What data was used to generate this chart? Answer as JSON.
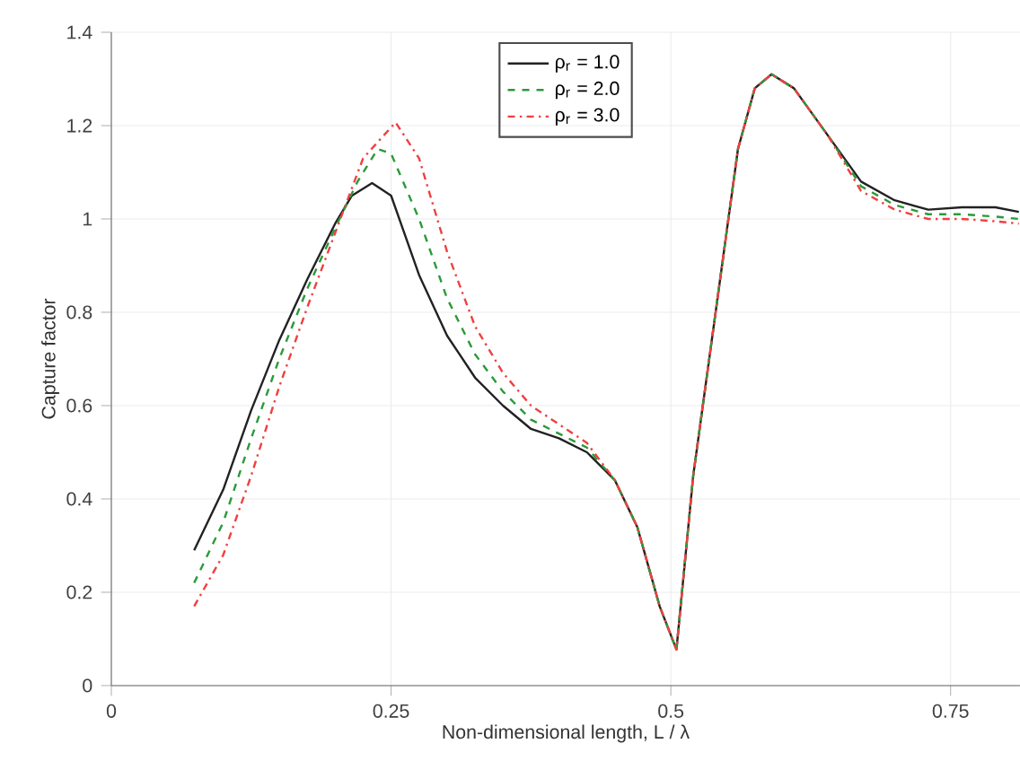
{
  "chart_data": {
    "type": "line",
    "xlabel": "Non-dimensional length, L / λ",
    "ylabel": "Capture factor",
    "xlim": [
      0,
      0.812
    ],
    "ylim": [
      0,
      1.4
    ],
    "xticks": [
      0,
      0.25,
      0.5,
      0.75
    ],
    "yticks": [
      0,
      0.2,
      0.4,
      0.6,
      0.8,
      1,
      1.2,
      1.4
    ],
    "grid": true,
    "legend": "top",
    "series": [
      {
        "name": "ρ$_{r}$ = 1.0",
        "color": "#222222",
        "line_style": "solid",
        "x": [
          0.074,
          0.1,
          0.125,
          0.15,
          0.175,
          0.2,
          0.215,
          0.233,
          0.25,
          0.275,
          0.3,
          0.325,
          0.35,
          0.375,
          0.4,
          0.425,
          0.45,
          0.47,
          0.49,
          0.505,
          0.52,
          0.54,
          0.56,
          0.575,
          0.59,
          0.61,
          0.64,
          0.67,
          0.7,
          0.73,
          0.76,
          0.79,
          0.811
        ],
        "values": [
          0.29,
          0.42,
          0.59,
          0.74,
          0.87,
          0.99,
          1.05,
          1.077,
          1.05,
          0.88,
          0.75,
          0.66,
          0.6,
          0.55,
          0.53,
          0.5,
          0.44,
          0.34,
          0.17,
          0.077,
          0.45,
          0.8,
          1.15,
          1.28,
          1.31,
          1.28,
          1.18,
          1.08,
          1.04,
          1.02,
          1.025,
          1.025,
          1.015
        ]
      },
      {
        "name": "ρ$_{r}$ = 2.0",
        "color": "#2a9a3a",
        "line_style": "dashed",
        "x": [
          0.074,
          0.1,
          0.125,
          0.15,
          0.175,
          0.2,
          0.22,
          0.238,
          0.25,
          0.275,
          0.3,
          0.325,
          0.35,
          0.375,
          0.4,
          0.425,
          0.45,
          0.47,
          0.49,
          0.505,
          0.52,
          0.54,
          0.56,
          0.575,
          0.59,
          0.61,
          0.64,
          0.67,
          0.7,
          0.73,
          0.76,
          0.79,
          0.811
        ],
        "values": [
          0.22,
          0.35,
          0.53,
          0.7,
          0.85,
          0.98,
          1.08,
          1.15,
          1.14,
          1.0,
          0.83,
          0.71,
          0.63,
          0.57,
          0.54,
          0.51,
          0.44,
          0.34,
          0.17,
          0.077,
          0.45,
          0.8,
          1.15,
          1.28,
          1.31,
          1.28,
          1.18,
          1.07,
          1.03,
          1.01,
          1.01,
          1.005,
          1.0
        ]
      },
      {
        "name": "ρ$_{r}$ = 3.0",
        "color": "#f04040",
        "line_style": "dashdot",
        "x": [
          0.074,
          0.1,
          0.125,
          0.15,
          0.175,
          0.2,
          0.225,
          0.254,
          0.275,
          0.3,
          0.325,
          0.35,
          0.375,
          0.4,
          0.425,
          0.45,
          0.47,
          0.49,
          0.505,
          0.52,
          0.54,
          0.56,
          0.575,
          0.59,
          0.61,
          0.64,
          0.67,
          0.7,
          0.73,
          0.76,
          0.79,
          0.811
        ],
        "values": [
          0.17,
          0.28,
          0.45,
          0.64,
          0.81,
          0.97,
          1.13,
          1.207,
          1.13,
          0.93,
          0.77,
          0.67,
          0.6,
          0.56,
          0.52,
          0.44,
          0.34,
          0.17,
          0.077,
          0.45,
          0.8,
          1.15,
          1.28,
          1.31,
          1.28,
          1.18,
          1.06,
          1.02,
          1.0,
          1.0,
          0.995,
          0.99
        ]
      }
    ]
  }
}
